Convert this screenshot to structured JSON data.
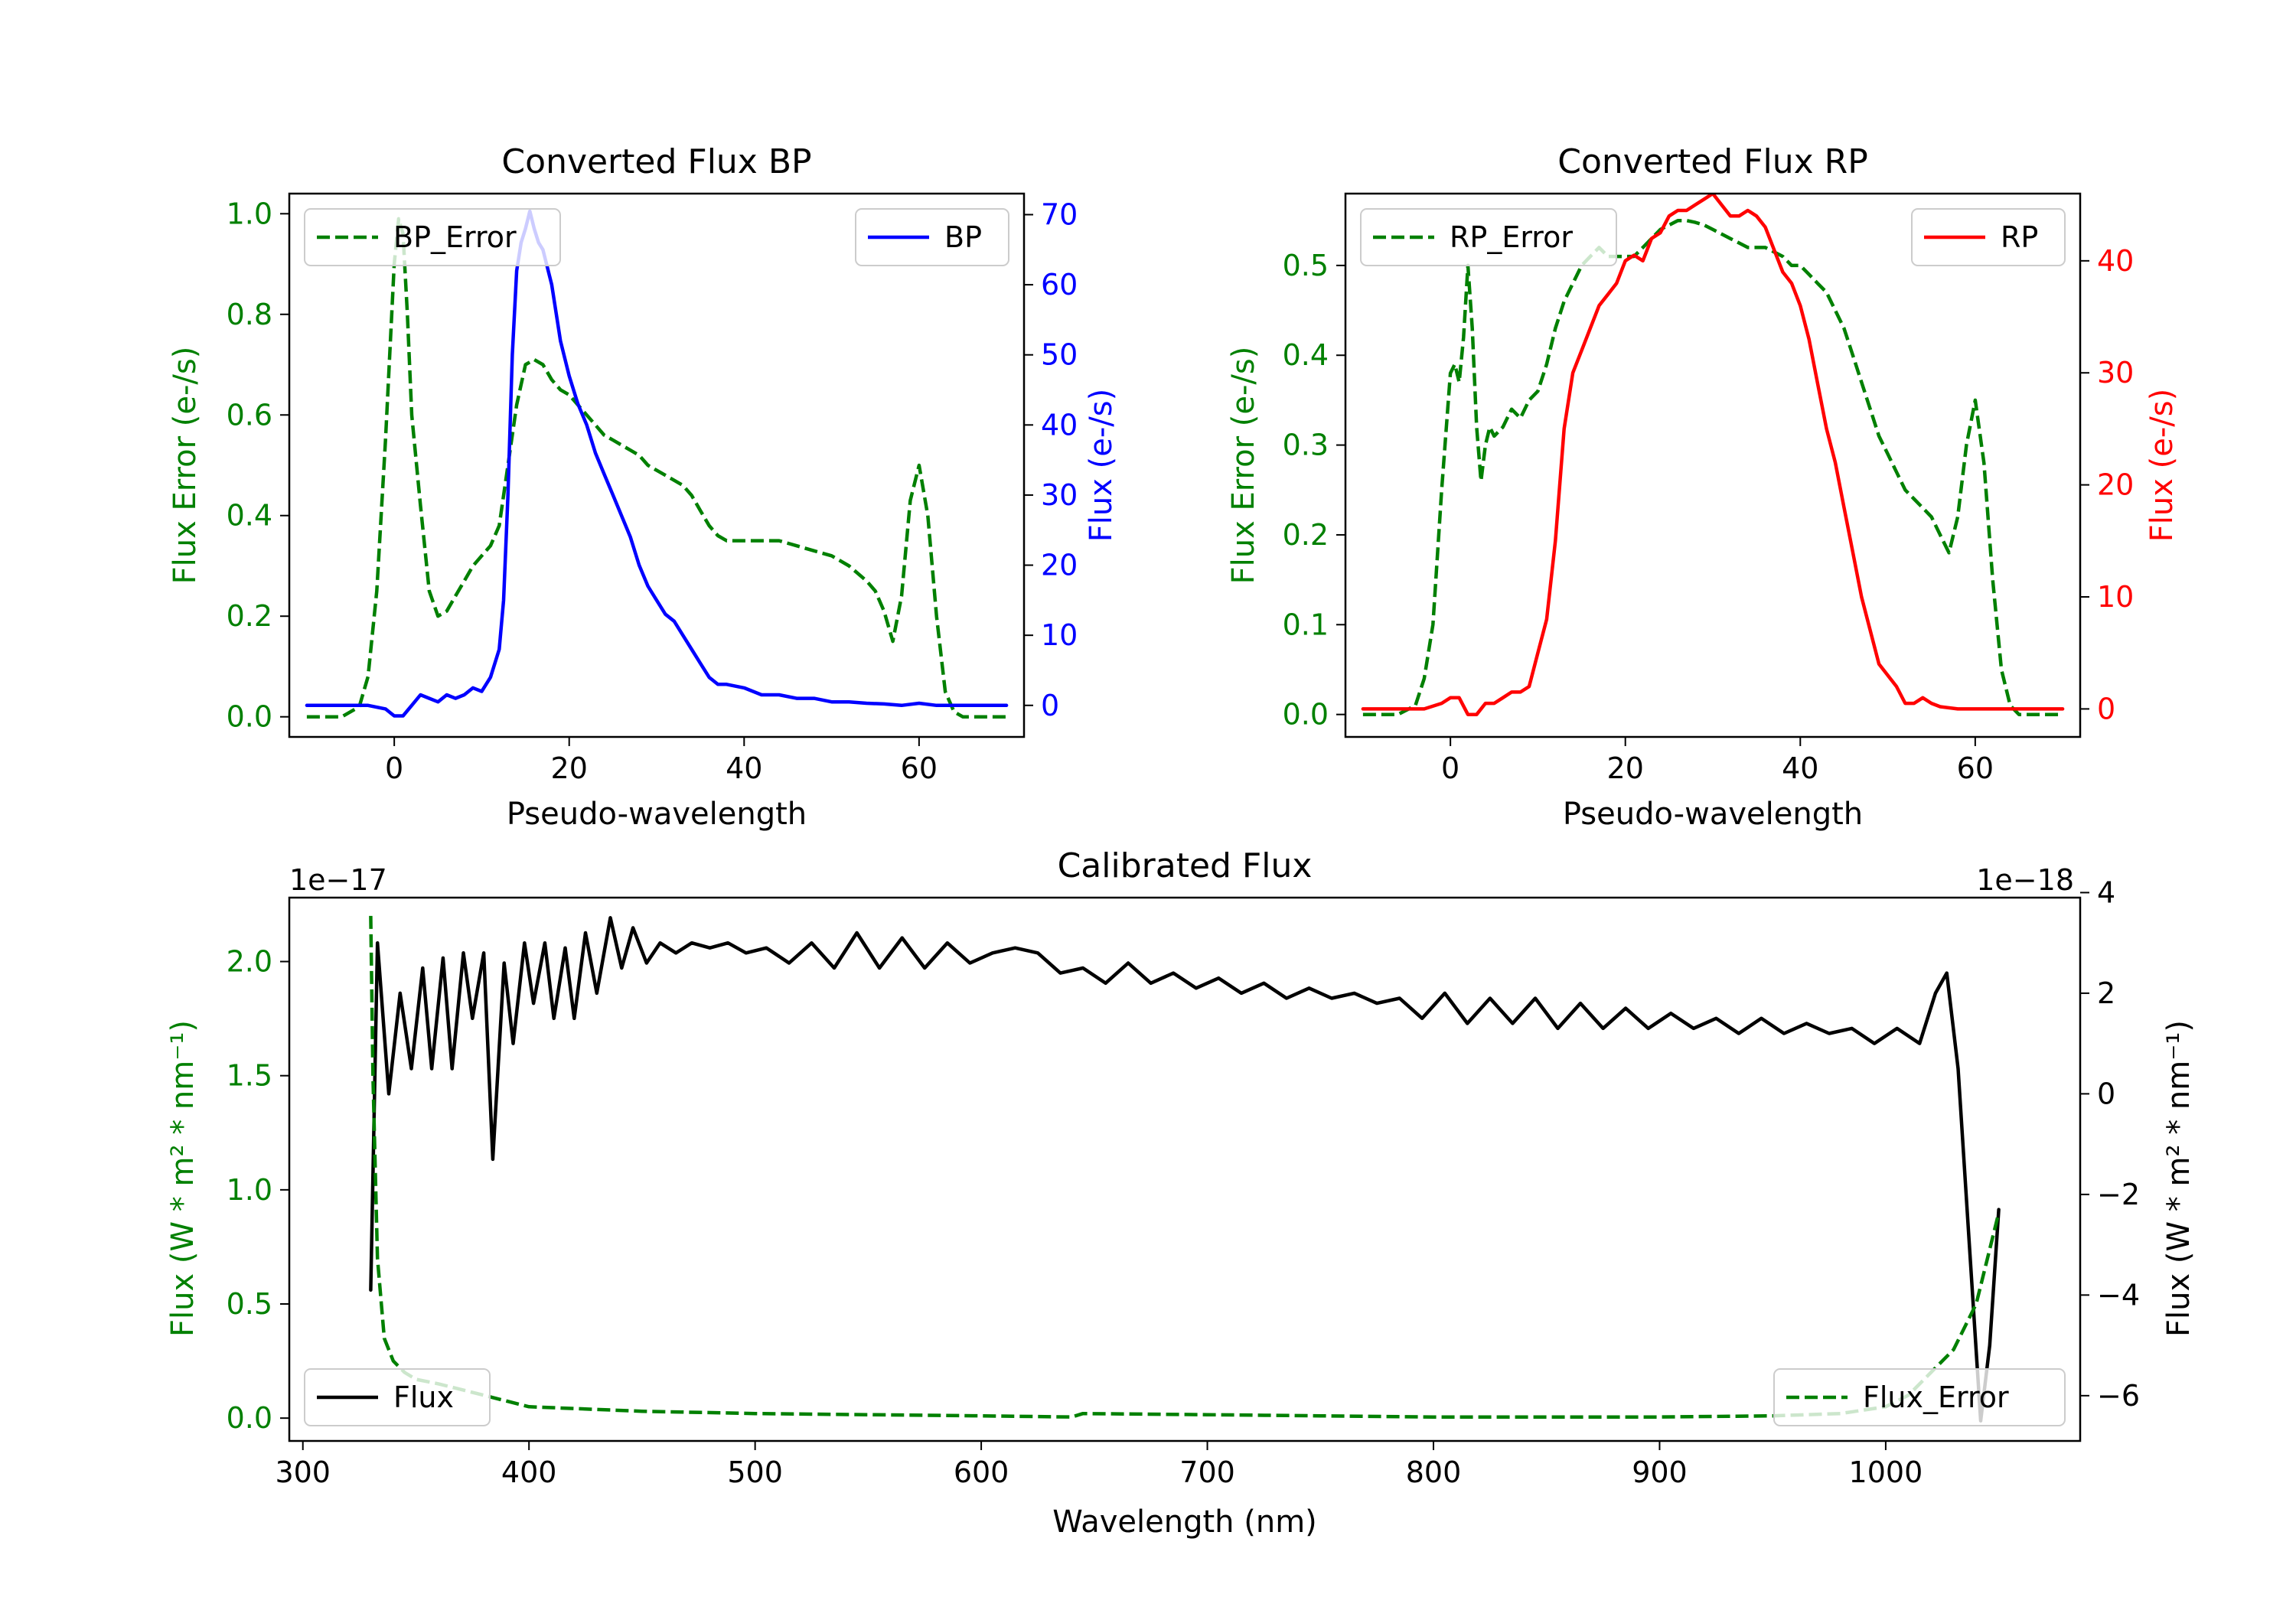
{
  "chart_data": [
    {
      "id": "bp",
      "type": "line",
      "title": "Converted Flux BP",
      "xlabel": "Pseudo-wavelength",
      "xlim": [
        -12,
        72
      ],
      "xticks": [
        0,
        20,
        40,
        60
      ],
      "left_axis": {
        "label": "Flux Error (e-/s)",
        "color": "#008000",
        "ylim": [
          -0.04,
          1.04
        ],
        "ticks": [
          0.0,
          0.2,
          0.4,
          0.6,
          0.8,
          1.0
        ],
        "tick_decimals": 1
      },
      "right_axis": {
        "label": "Flux (e-/s)",
        "color": "#0000ff",
        "ylim": [
          -4.5,
          73.0
        ],
        "ticks": [
          0,
          10,
          20,
          30,
          40,
          50,
          60,
          70
        ],
        "tick_decimals": 0
      },
      "series": [
        {
          "name": "BP_Error",
          "axis": "left",
          "color": "#008000",
          "dash": true,
          "legend_loc": "upper-left",
          "x": [
            -10,
            -6,
            -4,
            -3,
            -2,
            -1,
            0,
            0.5,
            1,
            1.5,
            2,
            3,
            4,
            5,
            6,
            7,
            8,
            9,
            10,
            11,
            12,
            13,
            14,
            15,
            16,
            17,
            18,
            19,
            20,
            21,
            22,
            23,
            24,
            25,
            26,
            27,
            28,
            29,
            30,
            31,
            32,
            33,
            34,
            35,
            36,
            37,
            38,
            39,
            40,
            42,
            44,
            46,
            48,
            50,
            52,
            54,
            55,
            56,
            57,
            58,
            59,
            60,
            61,
            62,
            63,
            64,
            65,
            66,
            68,
            70
          ],
          "values": [
            0.0,
            0.0,
            0.02,
            0.08,
            0.25,
            0.55,
            0.9,
            0.99,
            0.96,
            0.8,
            0.6,
            0.42,
            0.25,
            0.2,
            0.21,
            0.24,
            0.27,
            0.3,
            0.32,
            0.34,
            0.38,
            0.5,
            0.62,
            0.7,
            0.71,
            0.7,
            0.67,
            0.65,
            0.64,
            0.62,
            0.6,
            0.58,
            0.56,
            0.55,
            0.54,
            0.53,
            0.52,
            0.5,
            0.49,
            0.48,
            0.47,
            0.46,
            0.44,
            0.41,
            0.38,
            0.36,
            0.35,
            0.35,
            0.35,
            0.35,
            0.35,
            0.34,
            0.33,
            0.32,
            0.3,
            0.27,
            0.25,
            0.21,
            0.15,
            0.24,
            0.43,
            0.5,
            0.4,
            0.2,
            0.05,
            0.01,
            0.0,
            0.0,
            0.0,
            0.0
          ]
        },
        {
          "name": "BP",
          "axis": "right",
          "color": "#0000ff",
          "dash": false,
          "legend_loc": "upper-right",
          "x": [
            -10,
            -5,
            -3,
            -1,
            0,
            1,
            2,
            3,
            4,
            5,
            6,
            7,
            8,
            9,
            10,
            11,
            12,
            12.5,
            13,
            13.5,
            14,
            14.5,
            15,
            15.5,
            16,
            16.5,
            17,
            18,
            19,
            20,
            21,
            22,
            23,
            24,
            25,
            26,
            27,
            28,
            29,
            30,
            31,
            32,
            33,
            34,
            35,
            36,
            37,
            38,
            40,
            42,
            44,
            46,
            48,
            50,
            52,
            54,
            56,
            58,
            60,
            62,
            64,
            66,
            68,
            70
          ],
          "values": [
            0,
            0,
            0,
            -0.5,
            -1.5,
            -1.5,
            0,
            1.5,
            1,
            0.5,
            1.5,
            1.0,
            1.5,
            2.5,
            2.0,
            4,
            8,
            15,
            30,
            50,
            62,
            66,
            68,
            70.5,
            68,
            66,
            65,
            60,
            52,
            47,
            43,
            40,
            36,
            33,
            30,
            27,
            24,
            20,
            17,
            15,
            13,
            12,
            10,
            8,
            6,
            4,
            3,
            3,
            2.5,
            1.5,
            1.5,
            1.0,
            1.0,
            0.5,
            0.5,
            0.3,
            0.2,
            0.0,
            0.3,
            0.0,
            0.0,
            0.0,
            0.0,
            0.0
          ]
        }
      ]
    },
    {
      "id": "rp",
      "type": "line",
      "title": "Converted Flux RP",
      "xlabel": "Pseudo-wavelength",
      "xlim": [
        -12,
        72
      ],
      "xticks": [
        0,
        20,
        40,
        60
      ],
      "left_axis": {
        "label": "Flux Error (e-/s)",
        "color": "#008000",
        "ylim": [
          -0.025,
          0.58
        ],
        "ticks": [
          0.0,
          0.1,
          0.2,
          0.3,
          0.4,
          0.5
        ],
        "tick_decimals": 1
      },
      "right_axis": {
        "label": "Flux (e-/s)",
        "color": "#ff0000",
        "ylim": [
          -2.5,
          46.0
        ],
        "ticks": [
          0,
          10,
          20,
          30,
          40
        ],
        "tick_decimals": 0
      },
      "series": [
        {
          "name": "RP_Error",
          "axis": "left",
          "color": "#008000",
          "dash": true,
          "legend_loc": "upper-left",
          "x": [
            -10,
            -6,
            -4,
            -3,
            -2,
            -1,
            0,
            0.5,
            1,
            1.5,
            2,
            2.5,
            3,
            3.5,
            4,
            4.5,
            5,
            6,
            7,
            8,
            9,
            10,
            11,
            12,
            13,
            14,
            15,
            16,
            17,
            18,
            19,
            20,
            21,
            22,
            23,
            24,
            25,
            26,
            27,
            28,
            29,
            30,
            31,
            32,
            33,
            34,
            35,
            36,
            37,
            38,
            39,
            40,
            41,
            42,
            43,
            44,
            45,
            46,
            47,
            48,
            49,
            50,
            51,
            52,
            53,
            54,
            55,
            56,
            57,
            58,
            59,
            60,
            61,
            62,
            63,
            64,
            65,
            66,
            68,
            70
          ],
          "values": [
            0.0,
            0.0,
            0.01,
            0.04,
            0.1,
            0.25,
            0.38,
            0.39,
            0.37,
            0.42,
            0.5,
            0.43,
            0.32,
            0.26,
            0.3,
            0.32,
            0.31,
            0.32,
            0.34,
            0.33,
            0.35,
            0.36,
            0.39,
            0.43,
            0.46,
            0.48,
            0.5,
            0.51,
            0.52,
            0.51,
            0.51,
            0.51,
            0.51,
            0.52,
            0.53,
            0.54,
            0.545,
            0.55,
            0.55,
            0.548,
            0.545,
            0.54,
            0.535,
            0.53,
            0.525,
            0.52,
            0.52,
            0.52,
            0.515,
            0.51,
            0.5,
            0.5,
            0.49,
            0.48,
            0.47,
            0.45,
            0.43,
            0.4,
            0.37,
            0.34,
            0.31,
            0.29,
            0.27,
            0.25,
            0.24,
            0.23,
            0.22,
            0.2,
            0.18,
            0.22,
            0.3,
            0.35,
            0.28,
            0.15,
            0.05,
            0.01,
            0.0,
            0.0,
            0.0,
            0.0
          ]
        },
        {
          "name": "RP",
          "axis": "right",
          "color": "#ff0000",
          "dash": false,
          "legend_loc": "upper-right",
          "x": [
            -10,
            -5,
            -3,
            -1,
            0,
            1,
            2,
            3,
            4,
            5,
            6,
            7,
            8,
            9,
            10,
            11,
            12,
            13,
            14,
            15,
            16,
            17,
            18,
            19,
            20,
            21,
            22,
            23,
            24,
            25,
            26,
            27,
            28,
            29,
            30,
            31,
            32,
            33,
            34,
            35,
            36,
            37,
            38,
            39,
            40,
            41,
            42,
            43,
            44,
            45,
            46,
            47,
            48,
            49,
            50,
            51,
            52,
            53,
            54,
            55,
            56,
            58,
            60,
            62,
            64,
            66,
            68,
            70
          ],
          "values": [
            0,
            0,
            0,
            0.5,
            1,
            1,
            -0.5,
            -0.5,
            0.5,
            0.5,
            1,
            1.5,
            1.5,
            2,
            5,
            8,
            15,
            25,
            30,
            32,
            34,
            36,
            37,
            38,
            40,
            40.5,
            40,
            42,
            42.5,
            44,
            44.5,
            44.5,
            45,
            45.5,
            46,
            45,
            44,
            44,
            44.5,
            44,
            43,
            41,
            39,
            38,
            36,
            33,
            29,
            25,
            22,
            18,
            14,
            10,
            7,
            4,
            3,
            2,
            0.5,
            0.5,
            1,
            0.5,
            0.2,
            0,
            0,
            0,
            0,
            0,
            0,
            0
          ]
        }
      ]
    },
    {
      "id": "calibrated",
      "type": "line",
      "title": "Calibrated Flux",
      "xlabel": "Wavelength (nm)",
      "xlim": [
        294,
        1086
      ],
      "xticks": [
        300,
        400,
        500,
        600,
        700,
        800,
        900,
        1000
      ],
      "left_axis": {
        "label": "Flux (W * m² * nm⁻¹)",
        "color": "#008000",
        "ylim": [
          -0.1,
          2.28
        ],
        "ticks": [
          0.0,
          0.5,
          1.0,
          1.5,
          2.0
        ],
        "tick_decimals": 1,
        "offset_text": "1e−17"
      },
      "right_axis": {
        "label": "Flux (W * m² * nm⁻¹)",
        "color": "#000000",
        "ylim": [
          -6.9,
          3.9
        ],
        "ticks": [
          -6,
          -4,
          -2,
          0,
          2,
          4
        ],
        "tick_decimals": 0,
        "offset_text": "1e−18"
      },
      "series": [
        {
          "name": "Flux",
          "axis": "right",
          "color": "#000000",
          "dash": false,
          "legend_loc": "lower-left",
          "x": [
            330,
            333,
            338,
            343,
            348,
            353,
            357,
            362,
            366,
            371,
            375,
            380,
            384,
            389,
            393,
            398,
            402,
            407,
            411,
            416,
            420,
            425,
            430,
            436,
            441,
            446,
            452,
            458,
            465,
            472,
            480,
            488,
            496,
            505,
            515,
            525,
            535,
            545,
            555,
            565,
            575,
            585,
            595,
            605,
            615,
            625,
            635,
            645,
            655,
            665,
            675,
            685,
            695,
            705,
            715,
            725,
            735,
            745,
            755,
            765,
            775,
            785,
            795,
            805,
            815,
            825,
            835,
            845,
            855,
            865,
            875,
            885,
            895,
            905,
            915,
            925,
            935,
            945,
            955,
            965,
            975,
            985,
            995,
            1005,
            1015,
            1022,
            1027,
            1032,
            1037,
            1042,
            1046,
            1050
          ],
          "values": [
            -3.9,
            3.0,
            0.0,
            2.0,
            0.5,
            2.5,
            0.5,
            2.7,
            0.5,
            2.8,
            1.5,
            2.8,
            -1.3,
            2.6,
            1.0,
            3.0,
            1.8,
            3.0,
            1.5,
            2.9,
            1.5,
            3.2,
            2.0,
            3.5,
            2.5,
            3.3,
            2.6,
            3.0,
            2.8,
            3.0,
            2.9,
            3.0,
            2.8,
            2.9,
            2.6,
            3.0,
            2.5,
            3.2,
            2.5,
            3.1,
            2.5,
            3.0,
            2.6,
            2.8,
            2.9,
            2.8,
            2.4,
            2.5,
            2.2,
            2.6,
            2.2,
            2.4,
            2.1,
            2.3,
            2.0,
            2.2,
            1.9,
            2.1,
            1.9,
            2.0,
            1.8,
            1.9,
            1.5,
            2.0,
            1.4,
            1.9,
            1.4,
            1.9,
            1.3,
            1.8,
            1.3,
            1.7,
            1.3,
            1.6,
            1.3,
            1.5,
            1.2,
            1.5,
            1.2,
            1.4,
            1.2,
            1.3,
            1.0,
            1.3,
            1.0,
            2.0,
            2.4,
            0.5,
            -3.0,
            -6.5,
            -5.0,
            -2.3
          ]
        },
        {
          "name": "Flux_Error",
          "axis": "left",
          "color": "#008000",
          "dash": true,
          "legend_loc": "lower-right",
          "x": [
            330,
            331,
            333,
            336,
            340,
            345,
            350,
            360,
            380,
            400,
            450,
            500,
            550,
            600,
            640,
            645,
            700,
            750,
            800,
            850,
            900,
            950,
            980,
            1000,
            1010,
            1020,
            1030,
            1040,
            1045,
            1050
          ],
          "values": [
            2.2,
            1.5,
            0.7,
            0.35,
            0.25,
            0.2,
            0.17,
            0.15,
            0.1,
            0.05,
            0.03,
            0.02,
            0.015,
            0.01,
            0.005,
            0.02,
            0.015,
            0.01,
            0.005,
            0.005,
            0.005,
            0.01,
            0.02,
            0.05,
            0.1,
            0.2,
            0.3,
            0.5,
            0.7,
            0.9
          ]
        }
      ]
    }
  ]
}
